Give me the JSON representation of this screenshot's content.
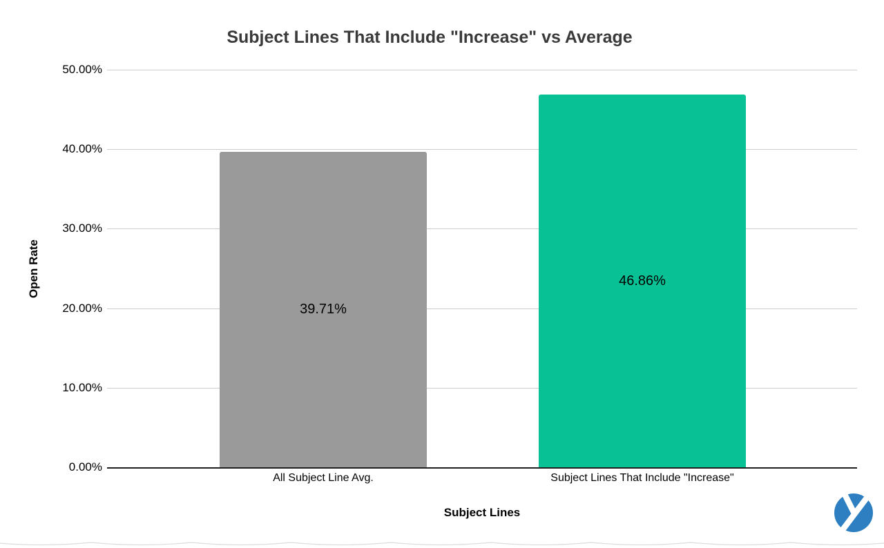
{
  "chart_data": {
    "type": "bar",
    "title": "Subject Lines That Include \"Increase\" vs Average",
    "xlabel": "Subject Lines",
    "ylabel": "Open Rate",
    "categories": [
      "All Subject Line Avg.",
      "Subject Lines That Include \"Increase\""
    ],
    "values": [
      39.71,
      46.86
    ],
    "value_labels": [
      "39.71%",
      "46.86%"
    ],
    "bar_colors": [
      "#9a9a9a",
      "#08c296"
    ],
    "ylim": [
      0,
      50
    ],
    "yticks": [
      "50.00%",
      "40.00%",
      "30.00%",
      "20.00%",
      "10.00%",
      "0.00%"
    ],
    "grid": true,
    "legend": "none"
  },
  "branding": {
    "logo_name": "yesware-y-logo",
    "logo_color": "#2e7fc1"
  },
  "style_colors": {
    "bar_gray": "#9a9a9a",
    "bar_teal": "#08c296",
    "gridline": "#cccccc",
    "axis": "#1f1f1f",
    "title_text": "#3a3a3a"
  }
}
